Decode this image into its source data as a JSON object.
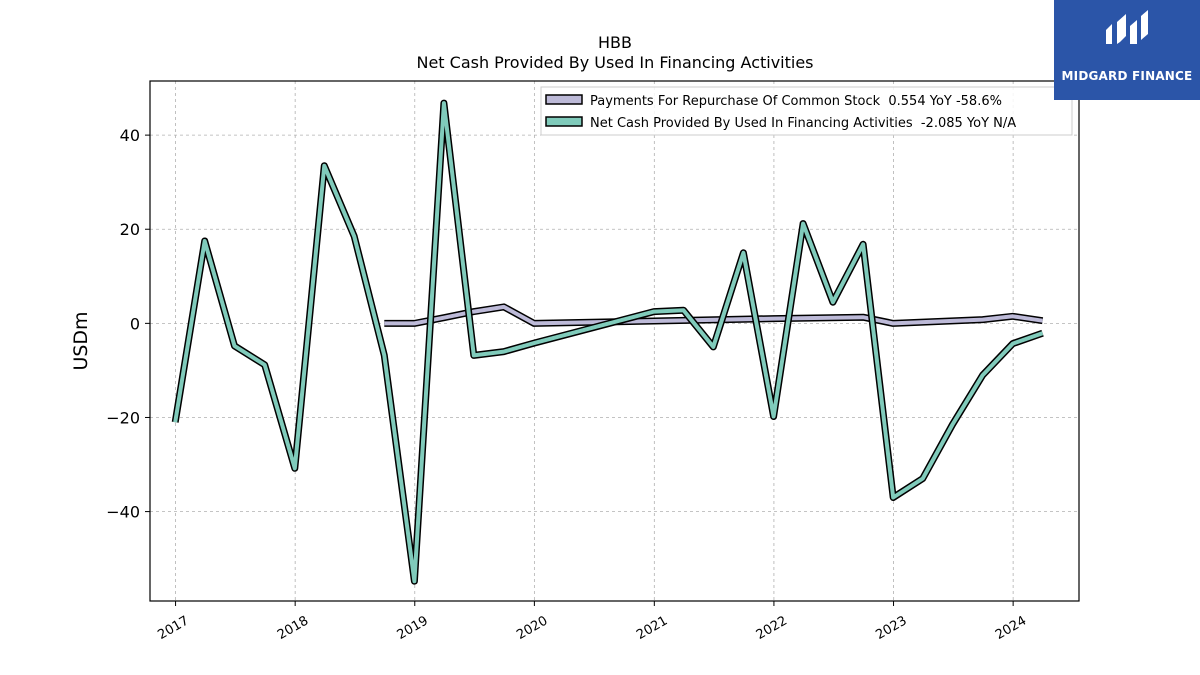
{
  "brand": {
    "name": "MIDGARD FINANCE"
  },
  "chart_data": {
    "type": "line",
    "title": "HBB",
    "subtitle": "Net Cash Provided By Used In Financing Activities",
    "xlabel": "",
    "ylabel": "USDm",
    "xlim": [
      "2016-10-15",
      "2024-07-20"
    ],
    "ylim": [
      -59,
      51.5
    ],
    "yticks": [
      40,
      20,
      0,
      -20,
      -40
    ],
    "ytick_labels": [
      "40",
      "20",
      "0",
      "−20",
      "−40"
    ],
    "xticks": [
      "2017-01-01",
      "2018-01-01",
      "2019-01-01",
      "2020-01-01",
      "2021-01-01",
      "2022-01-01",
      "2023-01-01",
      "2024-01-01"
    ],
    "xtick_labels": [
      "2017",
      "2018",
      "2019",
      "2020",
      "2021",
      "2022",
      "2023",
      "2024"
    ],
    "grid": true,
    "legend_position": "top-right",
    "colors": {
      "repurchase": "#bdbad8",
      "financing": "#80cbbb",
      "outline": "#000000",
      "grid": "#b0b0b0",
      "logo_bg": "#2b55a8"
    },
    "series": [
      {
        "name": "Payments For Repurchase Of Common Stock",
        "legend": "Payments For Repurchase Of Common Stock  0.554 YoY -58.6%",
        "color": "#bdbad8",
        "x": [
          "2018-09-30",
          "2018-12-31",
          "2019-03-31",
          "2019-06-30",
          "2019-09-30",
          "2019-12-31",
          "2020-12-31",
          "2021-12-31",
          "2022-09-30",
          "2022-12-31",
          "2023-09-30",
          "2023-12-31",
          "2024-03-31"
        ],
        "values": [
          0.0,
          0.0,
          1.2,
          2.5,
          3.5,
          0.0,
          0.5,
          1.0,
          1.3,
          0.0,
          0.8,
          1.5,
          0.554
        ]
      },
      {
        "name": "Net Cash Provided By Used In Financing Activities",
        "legend": "Net Cash Provided By Used In Financing Activities  -2.085 YoY N/A",
        "color": "#80cbbb",
        "x": [
          "2016-12-31",
          "2017-03-31",
          "2017-06-30",
          "2017-09-30",
          "2017-12-31",
          "2018-03-31",
          "2018-06-30",
          "2018-09-30",
          "2018-12-31",
          "2019-03-31",
          "2019-06-30",
          "2019-09-30",
          "2019-12-31",
          "2020-12-31",
          "2021-03-31",
          "2021-06-30",
          "2021-09-30",
          "2021-12-31",
          "2022-03-31",
          "2022-06-30",
          "2022-09-30",
          "2022-12-31",
          "2023-03-31",
          "2023-06-30",
          "2023-09-30",
          "2023-12-31",
          "2024-03-31"
        ],
        "values": [
          -21.0,
          17.5,
          -4.8,
          -8.8,
          -30.8,
          33.5,
          18.5,
          -6.8,
          -54.8,
          46.8,
          -6.8,
          -6.0,
          -4.2,
          2.5,
          2.8,
          -5.0,
          15.0,
          -19.8,
          21.2,
          4.5,
          16.8,
          -37.0,
          -33.0,
          -21.5,
          -11.0,
          -4.3,
          -2.085
        ]
      }
    ]
  }
}
